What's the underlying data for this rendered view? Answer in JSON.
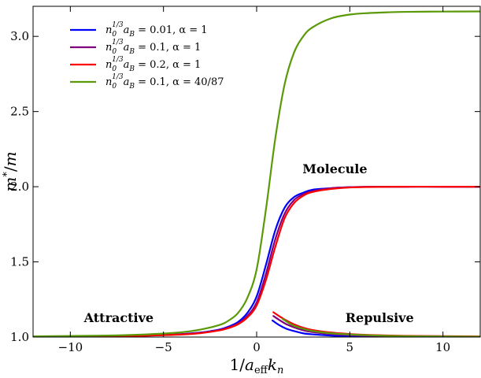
{
  "chart_data": {
    "type": "line",
    "xlabel": "1/a_eff k_n",
    "ylabel": "m*/m",
    "xlim": [
      -12,
      12
    ],
    "ylim": [
      1.0,
      3.2
    ],
    "xticks": [
      -10,
      -5,
      0,
      5,
      10
    ],
    "yticks": [
      1.0,
      1.5,
      2.0,
      2.5,
      3.0
    ],
    "xtick_labels": [
      "−10",
      "−5",
      "0",
      "5",
      "10"
    ],
    "ytick_labels": [
      "1.0",
      "1.5",
      "2.0",
      "2.5",
      "3.0"
    ],
    "grid": false,
    "legend_position": "top-left",
    "annotations": [
      {
        "text": "Attractive",
        "x": -7.4,
        "y": 1.1
      },
      {
        "text": "Molecule",
        "x": 4.2,
        "y": 2.09
      },
      {
        "text": "Repulsive",
        "x": 6.6,
        "y": 1.1
      }
    ],
    "series": [
      {
        "name": "n0^(1/3) aB = 0.01, α = 1",
        "color": "#0000ff",
        "branches": [
          {
            "x": [
              -12,
              -8,
              -6,
              -4,
              -3,
              -2,
              -1.5,
              -1,
              -0.5,
              0,
              0.5,
              1,
              1.5,
              2,
              2.5,
              3,
              4,
              5,
              6,
              8,
              10,
              12
            ],
            "y": [
              1.003,
              1.006,
              1.01,
              1.02,
              1.03,
              1.05,
              1.07,
              1.1,
              1.16,
              1.27,
              1.48,
              1.71,
              1.86,
              1.93,
              1.96,
              1.98,
              1.99,
              1.997,
              1.999,
              2.0,
              2.0,
              2.0
            ]
          },
          {
            "x": [
              0.85,
              1.2,
              1.6,
              2,
              2.5,
              3,
              4,
              5,
              6,
              8,
              12
            ],
            "y": [
              1.11,
              1.08,
              1.055,
              1.04,
              1.025,
              1.018,
              1.01,
              1.006,
              1.004,
              1.002,
              1.001
            ]
          }
        ]
      },
      {
        "name": "n0^(1/3) aB = 0.1, α = 1",
        "color": "#800080",
        "branches": [
          {
            "x": [
              -12,
              -8,
              -6,
              -4,
              -3,
              -2,
              -1.5,
              -1,
              -0.5,
              0,
              0.5,
              1,
              1.5,
              2,
              2.5,
              3,
              4,
              5,
              6,
              8,
              10,
              12
            ],
            "y": [
              1.003,
              1.006,
              1.01,
              1.019,
              1.028,
              1.047,
              1.065,
              1.09,
              1.14,
              1.23,
              1.42,
              1.65,
              1.82,
              1.91,
              1.95,
              1.97,
              1.99,
              1.996,
              1.999,
              2.0,
              2.0,
              2.0
            ]
          },
          {
            "x": [
              0.9,
              1.2,
              1.6,
              2,
              2.5,
              3,
              4,
              5,
              6,
              8,
              12
            ],
            "y": [
              1.14,
              1.115,
              1.085,
              1.065,
              1.045,
              1.033,
              1.02,
              1.013,
              1.009,
              1.005,
              1.002
            ]
          }
        ]
      },
      {
        "name": "n0^(1/3) aB = 0.2, α = 1",
        "color": "#ff0000",
        "branches": [
          {
            "x": [
              -12,
              -8,
              -6,
              -4,
              -3,
              -2,
              -1.5,
              -1,
              -0.5,
              0,
              0.5,
              1,
              1.5,
              2,
              2.5,
              3,
              4,
              5,
              6,
              8,
              10,
              12
            ],
            "y": [
              1.003,
              1.005,
              1.009,
              1.017,
              1.026,
              1.044,
              1.06,
              1.085,
              1.13,
              1.21,
              1.38,
              1.6,
              1.79,
              1.89,
              1.94,
              1.965,
              1.985,
              1.995,
              1.998,
              2.0,
              2.0,
              2.0
            ]
          },
          {
            "x": [
              0.9,
              1.2,
              1.6,
              2,
              2.5,
              3,
              4,
              5,
              6,
              8,
              12
            ],
            "y": [
              1.165,
              1.14,
              1.11,
              1.085,
              1.062,
              1.047,
              1.03,
              1.02,
              1.014,
              1.008,
              1.004
            ]
          }
        ]
      },
      {
        "name": "n0^(1/3) aB = 0.1, α = 40/87",
        "color": "#5a9a08",
        "branches": [
          {
            "x": [
              -12,
              -8,
              -6,
              -4,
              -3,
              -2,
              -1.5,
              -1,
              -0.5,
              0,
              0.5,
              1,
              1.5,
              2,
              2.5,
              3,
              4,
              5,
              6,
              7,
              8,
              10,
              12
            ],
            "y": [
              1.005,
              1.01,
              1.017,
              1.032,
              1.05,
              1.08,
              1.11,
              1.16,
              1.26,
              1.45,
              1.85,
              2.32,
              2.68,
              2.89,
              3.0,
              3.06,
              3.12,
              3.145,
              3.155,
              3.16,
              3.163,
              3.165,
              3.166
            ]
          },
          {
            "x": [
              1.4,
              1.7,
              2,
              2.5,
              3,
              4,
              5,
              6,
              8,
              12
            ],
            "y": [
              1.12,
              1.095,
              1.075,
              1.055,
              1.04,
              1.025,
              1.017,
              1.012,
              1.006,
              1.002
            ]
          }
        ]
      }
    ],
    "legend": [
      {
        "prefix": "n",
        "sub": "0",
        "sup": "1/3",
        "mid": "a",
        "sub2": "B",
        "rest": " = 0.01, α = 1",
        "color": "#0000ff"
      },
      {
        "prefix": "n",
        "sub": "0",
        "sup": "1/3",
        "mid": "a",
        "sub2": "B",
        "rest": " = 0.1, α = 1",
        "color": "#800080"
      },
      {
        "prefix": "n",
        "sub": "0",
        "sup": "1/3",
        "mid": "a",
        "sub2": "B",
        "rest": " = 0.2, α = 1",
        "color": "#ff0000"
      },
      {
        "prefix": "n",
        "sub": "0",
        "sup": "1/3",
        "mid": "a",
        "sub2": "B",
        "rest": " = 0.1, α = 40/87",
        "color": "#5a9a08"
      }
    ]
  }
}
